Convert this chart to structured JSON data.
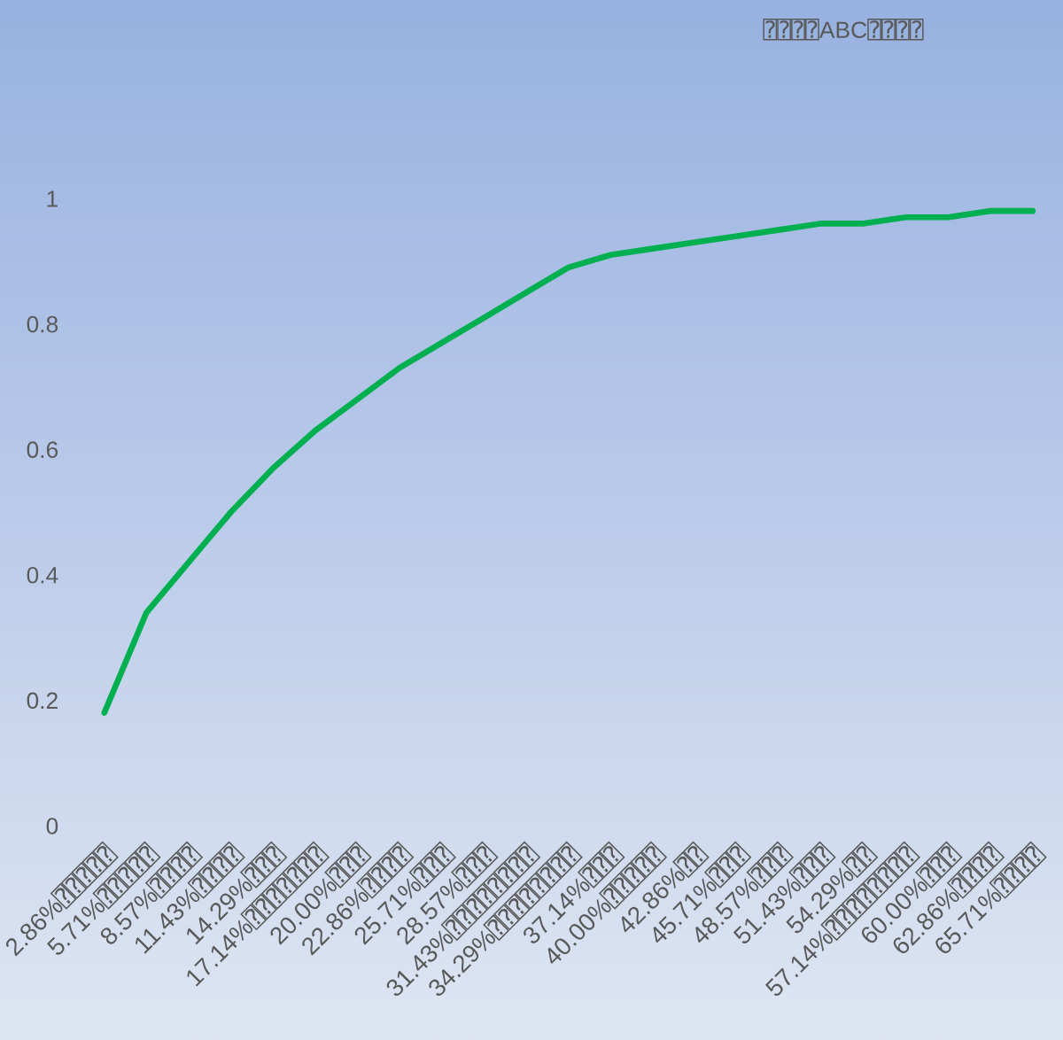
{
  "chart_data": {
    "type": "line",
    "title": "⍰⍰⍰⍰ABC⍰⍰⍰⍰",
    "categories": [
      "2.86%⍰⍰⍰⍰⍰",
      "5.71%⍰⍰⍰⍰⍰",
      "8.57%⍰⍰⍰⍰",
      "11.43%⍰⍰⍰⍰",
      "14.29%⍰⍰⍰",
      "17.14%⍰⍰⍰⍰⍰⍰⍰",
      "20.00%⍰⍰⍰",
      "22.86%⍰⍰⍰⍰",
      "25.71%⍰⍰⍰",
      "28.57%⍰⍰⍰",
      "31.43%⍰⍰⍰⍰⍰⍰⍰⍰",
      "34.29%⍰⍰⍰⍰⍰⍰⍰⍰",
      "37.14%⍰⍰⍰",
      "40.00%⍰⍰⍰⍰⍰",
      "42.86%⍰⍰",
      "45.71%⍰⍰⍰",
      "48.57%⍰⍰⍰",
      "51.43%⍰⍰⍰",
      "54.29%⍰⍰",
      "57.14%⍰⍰⍰⍰⍰⍰⍰⍰",
      "60.00%⍰⍰⍰",
      "62.86%⍰⍰⍰⍰",
      "65.71%⍰⍰⍰⍰"
    ],
    "series": [
      {
        "color": "#00b050",
        "values": [
          0.18,
          0.34,
          0.42,
          0.5,
          0.57,
          0.63,
          0.68,
          0.73,
          0.77,
          0.81,
          0.85,
          0.89,
          0.91,
          0.92,
          0.93,
          0.94,
          0.95,
          0.96,
          0.96,
          0.97,
          0.97,
          0.98,
          0.98
        ]
      }
    ],
    "ylim": [
      0,
      1
    ],
    "yticks": [
      0,
      0.2,
      0.4,
      0.6,
      0.8,
      1
    ],
    "grid": false,
    "marker": "none",
    "line_style": "solid"
  }
}
